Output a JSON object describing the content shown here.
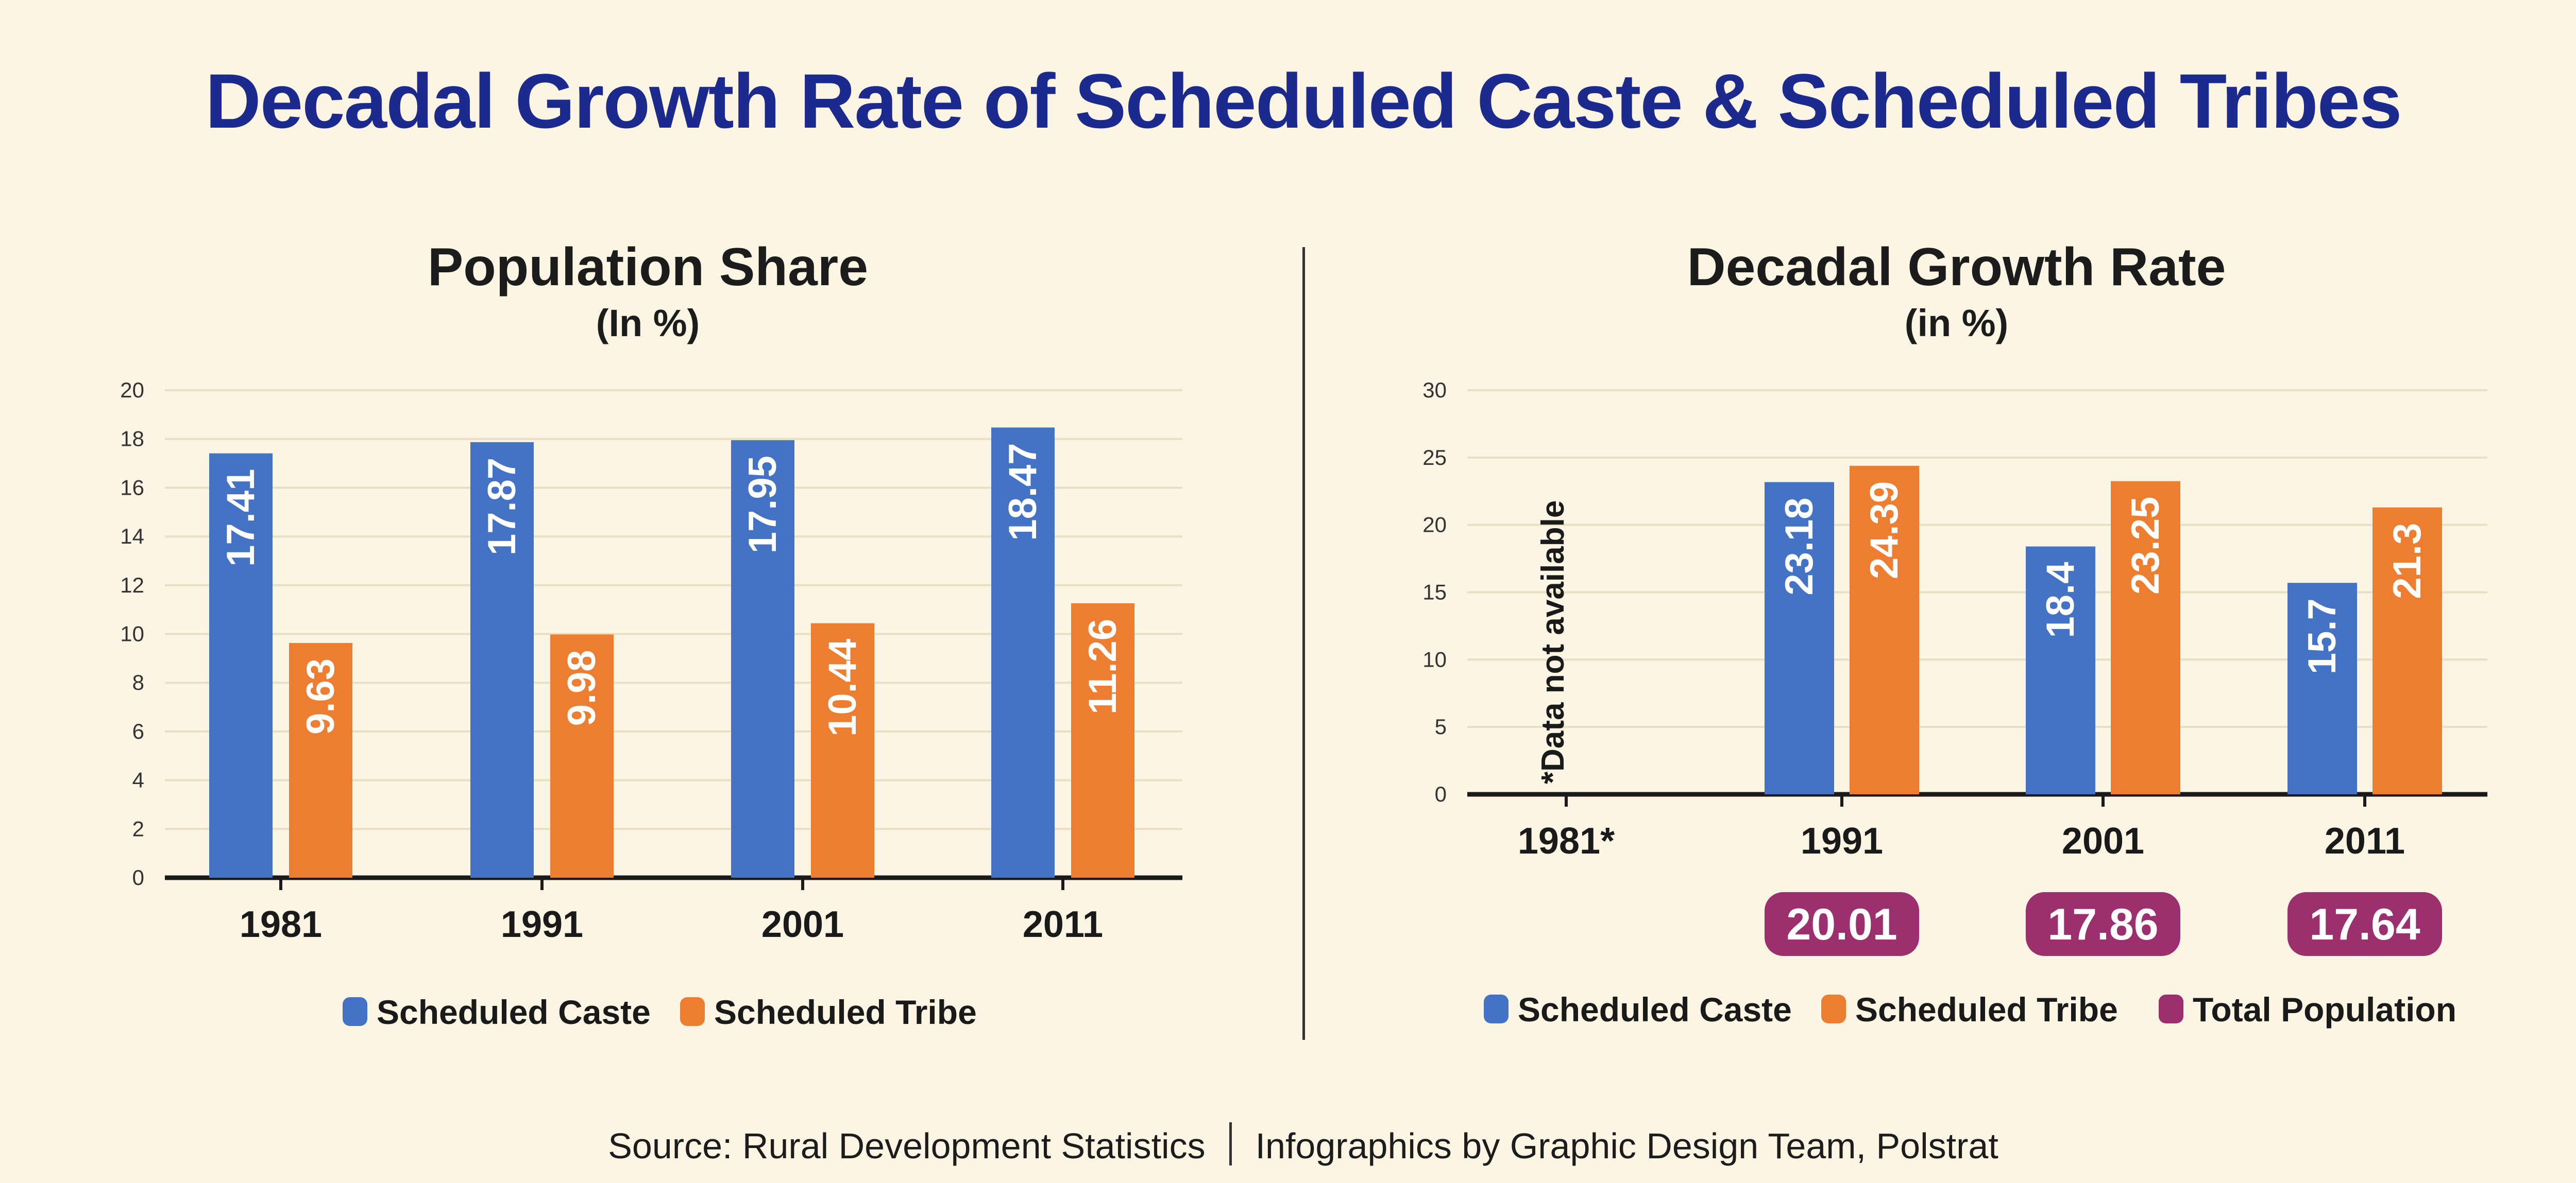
{
  "title": "Decadal Growth Rate of Scheduled Caste & Scheduled Tribes",
  "colors": {
    "sc": "#4472c4",
    "st": "#ed7d31",
    "total": "#9c2f6e",
    "title": "#1b2a8c",
    "grid": "#e9dfc4",
    "axis": "#1a1a1a",
    "bg": "#fdf5e4"
  },
  "legend": {
    "sc": "Scheduled Caste",
    "st": "Scheduled Tribe",
    "total": "Total Population"
  },
  "footer": {
    "source": "Source: Rural Development Statistics",
    "credit": "Infographics by Graphic Design Team, Polstrat"
  },
  "chart_data": [
    {
      "type": "bar",
      "title": "Population Share",
      "subtitle": "(In %)",
      "categories": [
        "1981",
        "1991",
        "2001",
        "2011"
      ],
      "series": [
        {
          "name": "Scheduled Caste",
          "values": [
            17.41,
            17.87,
            17.95,
            18.47
          ]
        },
        {
          "name": "Scheduled Tribe",
          "values": [
            9.63,
            9.98,
            10.44,
            11.26
          ]
        }
      ],
      "ylim": [
        0,
        20
      ],
      "yticks": [
        0,
        2,
        4,
        6,
        8,
        10,
        12,
        14,
        16,
        18,
        20
      ],
      "grid": true,
      "legend": "bottom-center"
    },
    {
      "type": "bar",
      "title": "Decadal Growth Rate",
      "subtitle": "(in %)",
      "categories": [
        "1981*",
        "1991",
        "2001",
        "2011"
      ],
      "series": [
        {
          "name": "Scheduled Caste",
          "values": [
            null,
            23.18,
            18.4,
            15.7
          ]
        },
        {
          "name": "Scheduled Tribe",
          "values": [
            null,
            24.39,
            23.25,
            21.3
          ]
        },
        {
          "name": "Total Population",
          "values": [
            null,
            20.01,
            17.86,
            17.64
          ]
        }
      ],
      "annotation": "*Data not available",
      "ylim": [
        0,
        30
      ],
      "yticks": [
        0,
        5,
        10,
        15,
        20,
        25,
        30
      ],
      "grid": true,
      "legend": "bottom-center"
    }
  ]
}
